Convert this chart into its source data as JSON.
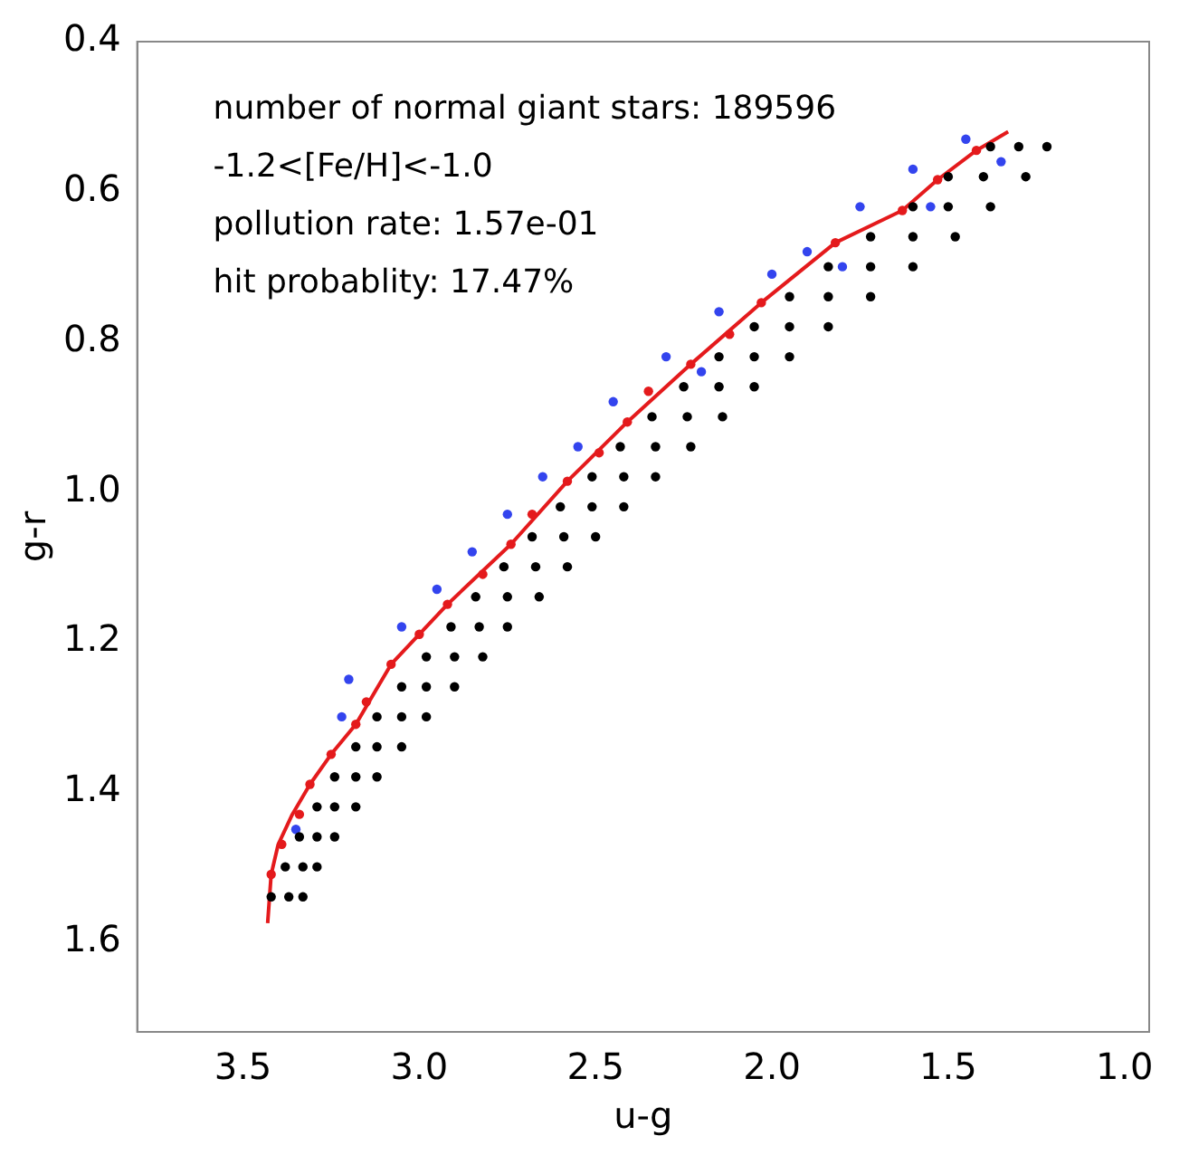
{
  "chart_data": {
    "type": "scatter",
    "xlabel": "u-g",
    "ylabel": "g-r",
    "xlim": [
      3.8,
      0.93
    ],
    "ylim": [
      1.72,
      0.4
    ],
    "xticks": [
      {
        "value": 3.5,
        "label": "3.5"
      },
      {
        "value": 3,
        "label": "3.0"
      },
      {
        "value": 2.5,
        "label": "2.5"
      },
      {
        "value": 2,
        "label": "2.0"
      },
      {
        "value": 1.5,
        "label": "1.5"
      },
      {
        "value": 1,
        "label": "1.0"
      }
    ],
    "yticks": [
      {
        "value": 0.4,
        "label": "0.4"
      },
      {
        "value": 0.6,
        "label": "0.6"
      },
      {
        "value": 0.8,
        "label": "0.8"
      },
      {
        "value": 1,
        "label": "1.0"
      },
      {
        "value": 1.2,
        "label": "1.2"
      },
      {
        "value": 1.4,
        "label": "1.4"
      },
      {
        "value": 1.6,
        "label": "1.6"
      }
    ],
    "grid": false,
    "legend": false,
    "marker": "circle",
    "annotations": [
      "number of normal giant stars: 189596",
      "-1.2<[Fe/H]<-1.0",
      "pollution rate: 1.57e-01",
      "hit probablity: 17.47%"
    ],
    "series": [
      {
        "color": "#000000",
        "x": [
          1.38,
          1.3,
          1.22,
          1.5,
          1.4,
          1.28,
          1.6,
          1.5,
          1.38,
          1.72,
          1.6,
          1.48,
          1.84,
          1.72,
          1.6,
          1.95,
          1.84,
          1.72,
          2.05,
          1.95,
          1.84,
          2.15,
          2.05,
          1.95,
          2.25,
          2.15,
          2.05,
          2.34,
          2.24,
          2.14,
          2.43,
          2.33,
          2.23,
          2.51,
          2.42,
          2.33,
          2.6,
          2.51,
          2.42,
          2.68,
          2.59,
          2.5,
          2.76,
          2.67,
          2.58,
          2.84,
          2.75,
          2.66,
          2.91,
          2.83,
          2.75,
          2.98,
          2.9,
          2.82,
          3.05,
          2.98,
          2.9,
          3.12,
          3.05,
          2.98,
          3.18,
          3.12,
          3.05,
          3.24,
          3.18,
          3.12,
          3.29,
          3.24,
          3.18,
          3.34,
          3.29,
          3.24,
          3.38,
          3.33,
          3.29,
          3.42,
          3.37,
          3.33
        ],
        "values": [
          0.54,
          0.54,
          0.54,
          0.58,
          0.58,
          0.58,
          0.62,
          0.62,
          0.62,
          0.66,
          0.66,
          0.66,
          0.7,
          0.7,
          0.7,
          0.74,
          0.74,
          0.74,
          0.78,
          0.78,
          0.78,
          0.82,
          0.82,
          0.82,
          0.86,
          0.86,
          0.86,
          0.9,
          0.9,
          0.9,
          0.94,
          0.94,
          0.94,
          0.98,
          0.98,
          0.98,
          1.02,
          1.02,
          1.02,
          1.06,
          1.06,
          1.06,
          1.1,
          1.1,
          1.1,
          1.14,
          1.14,
          1.14,
          1.18,
          1.18,
          1.18,
          1.22,
          1.22,
          1.22,
          1.26,
          1.26,
          1.26,
          1.3,
          1.3,
          1.3,
          1.34,
          1.34,
          1.34,
          1.38,
          1.38,
          1.38,
          1.42,
          1.42,
          1.42,
          1.46,
          1.46,
          1.46,
          1.5,
          1.5,
          1.5,
          1.54,
          1.54,
          1.54
        ]
      },
      {
        "color": "#3344ee",
        "x": [
          1.45,
          1.6,
          1.75,
          1.9,
          2.0,
          2.15,
          2.3,
          2.45,
          2.55,
          2.65,
          2.75,
          2.85,
          2.95,
          3.05,
          3.2,
          3.22,
          3.35,
          1.35,
          1.55,
          1.8,
          2.2
        ],
        "values": [
          0.53,
          0.57,
          0.62,
          0.68,
          0.71,
          0.76,
          0.82,
          0.88,
          0.94,
          0.98,
          1.03,
          1.08,
          1.13,
          1.18,
          1.25,
          1.3,
          1.45,
          0.56,
          0.62,
          0.7,
          0.84
        ]
      },
      {
        "color": "#e41a1c",
        "x": [
          1.42,
          1.53,
          1.63,
          1.82,
          2.03,
          2.12,
          2.23,
          2.35,
          2.41,
          2.49,
          2.58,
          2.68,
          2.74,
          2.82,
          2.92,
          3.0,
          3.08,
          3.15,
          3.18,
          3.25,
          3.31,
          3.34,
          3.39,
          3.42
        ],
        "values": [
          0.545,
          0.584,
          0.625,
          0.668,
          0.748,
          0.79,
          0.83,
          0.866,
          0.907,
          0.948,
          0.986,
          1.03,
          1.07,
          1.11,
          1.15,
          1.19,
          1.23,
          1.28,
          1.31,
          1.35,
          1.39,
          1.43,
          1.47,
          1.51
        ]
      },
      {
        "type": "line",
        "marker": "none",
        "color": "#e41a1c",
        "x": [
          1.33,
          1.42,
          1.53,
          1.63,
          1.82,
          2.03,
          2.23,
          2.41,
          2.58,
          2.74,
          2.92,
          3.08,
          3.18,
          3.25,
          3.31,
          3.36,
          3.4,
          3.42,
          3.43
        ],
        "values": [
          0.52,
          0.545,
          0.584,
          0.625,
          0.668,
          0.748,
          0.83,
          0.907,
          0.986,
          1.07,
          1.15,
          1.23,
          1.31,
          1.35,
          1.39,
          1.43,
          1.47,
          1.51,
          1.575
        ]
      }
    ]
  }
}
